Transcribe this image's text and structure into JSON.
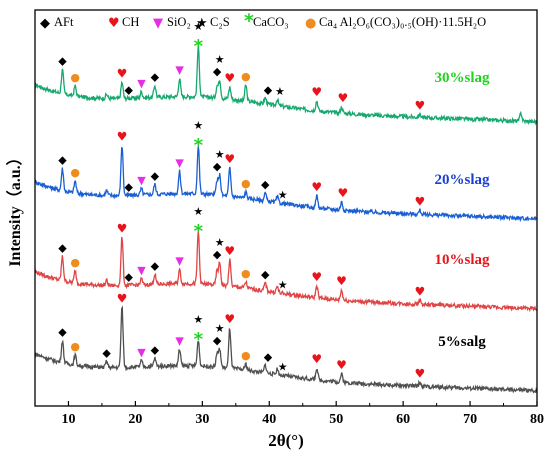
{
  "chart_data": {
    "type": "line",
    "xlabel": "2θ(°)",
    "ylabel": "Intensity（a.u.）",
    "xlim": [
      5,
      80
    ],
    "xticks": [
      "10",
      "20",
      "30",
      "40",
      "50",
      "60",
      "70",
      "80"
    ],
    "grid": false,
    "legend_position": "top",
    "legend": [
      {
        "symbol": "◆",
        "label": "AFt",
        "color": "#000000"
      },
      {
        "symbol": "♥",
        "label": "CH",
        "color": "#e8141b"
      },
      {
        "symbol": "▼",
        "label": "SiO₂",
        "color": "#e62ee6"
      },
      {
        "symbol": "★",
        "label": "C₂S",
        "color": "#000000"
      },
      {
        "symbol": "*",
        "label": "CaCO₃",
        "color": "#1fd31f"
      },
      {
        "symbol": "●",
        "label": "Ca₄ Al₂O₆(CO₃)₀.₅(OH)·11.5H₂O",
        "color": "#f08c1e"
      }
    ],
    "peaks": [
      {
        "x": 9.1,
        "h": 26
      },
      {
        "x": 11.0,
        "h": 10
      },
      {
        "x": 15.7,
        "h": 5
      },
      {
        "x": 18.0,
        "h": 62
      },
      {
        "x": 20.9,
        "h": 6
      },
      {
        "x": 22.9,
        "h": 10
      },
      {
        "x": 26.6,
        "h": 18
      },
      {
        "x": 29.4,
        "h": 38
      },
      {
        "x": 32.2,
        "h": 14
      },
      {
        "x": 32.6,
        "h": 20
      },
      {
        "x": 34.1,
        "h": 40
      },
      {
        "x": 36.5,
        "h": 6
      },
      {
        "x": 39.4,
        "h": 8
      },
      {
        "x": 41.2,
        "h": 6
      },
      {
        "x": 47.1,
        "h": 14
      },
      {
        "x": 50.8,
        "h": 10
      },
      {
        "x": 62.5,
        "h": 6
      }
    ],
    "series": [
      {
        "name": "30%slag",
        "color": "#17a870",
        "label_color": "#1fd31f",
        "peaks": [
          {
            "x": 9.1,
            "h": 24
          },
          {
            "x": 11.0,
            "h": 10
          },
          {
            "x": 15.7,
            "h": 4
          },
          {
            "x": 18.0,
            "h": 16
          },
          {
            "x": 20.9,
            "h": 6
          },
          {
            "x": 22.9,
            "h": 12
          },
          {
            "x": 26.6,
            "h": 18
          },
          {
            "x": 29.4,
            "h": 50
          },
          {
            "x": 32.2,
            "h": 12
          },
          {
            "x": 32.6,
            "h": 18
          },
          {
            "x": 34.1,
            "h": 12
          },
          {
            "x": 36.5,
            "h": 16
          },
          {
            "x": 39.4,
            "h": 6
          },
          {
            "x": 41.2,
            "h": 6
          },
          {
            "x": 47.1,
            "h": 10
          },
          {
            "x": 50.8,
            "h": 6
          },
          {
            "x": 62.5,
            "h": 3
          },
          {
            "x": 77.6,
            "h": 8
          }
        ]
      },
      {
        "name": "20%slag",
        "color": "#1a5fd4",
        "label_color": "#1a3fd4",
        "peaks": [
          {
            "x": 9.1,
            "h": 22
          },
          {
            "x": 11.0,
            "h": 12
          },
          {
            "x": 15.7,
            "h": 5
          },
          {
            "x": 18.0,
            "h": 50
          },
          {
            "x": 20.9,
            "h": 6
          },
          {
            "x": 22.9,
            "h": 10
          },
          {
            "x": 26.6,
            "h": 22
          },
          {
            "x": 29.4,
            "h": 48
          },
          {
            "x": 32.2,
            "h": 14
          },
          {
            "x": 32.6,
            "h": 20
          },
          {
            "x": 34.1,
            "h": 28
          },
          {
            "x": 36.5,
            "h": 6
          },
          {
            "x": 39.4,
            "h": 8
          },
          {
            "x": 41.2,
            "h": 6
          },
          {
            "x": 47.1,
            "h": 12
          },
          {
            "x": 50.8,
            "h": 8
          },
          {
            "x": 62.5,
            "h": 4
          }
        ]
      },
      {
        "name": "10%slag",
        "color": "#e04545",
        "label_color": "#e8141b",
        "peaks": [
          {
            "x": 9.1,
            "h": 24
          },
          {
            "x": 11.0,
            "h": 12
          },
          {
            "x": 15.7,
            "h": 5
          },
          {
            "x": 18.0,
            "h": 48
          },
          {
            "x": 20.9,
            "h": 6
          },
          {
            "x": 22.9,
            "h": 10
          },
          {
            "x": 26.6,
            "h": 14
          },
          {
            "x": 29.4,
            "h": 52
          },
          {
            "x": 32.2,
            "h": 14
          },
          {
            "x": 32.6,
            "h": 22
          },
          {
            "x": 34.1,
            "h": 26
          },
          {
            "x": 36.5,
            "h": 6
          },
          {
            "x": 39.4,
            "h": 8
          },
          {
            "x": 41.2,
            "h": 6
          },
          {
            "x": 47.1,
            "h": 12
          },
          {
            "x": 50.8,
            "h": 10
          },
          {
            "x": 62.5,
            "h": 4
          }
        ]
      },
      {
        "name": "5%salg",
        "color": "#505050",
        "label_color": "#000000",
        "peaks": [
          {
            "x": 9.1,
            "h": 22
          },
          {
            "x": 11.0,
            "h": 10
          },
          {
            "x": 15.7,
            "h": 6
          },
          {
            "x": 18.0,
            "h": 60
          },
          {
            "x": 20.9,
            "h": 6
          },
          {
            "x": 22.9,
            "h": 8
          },
          {
            "x": 26.6,
            "h": 16
          },
          {
            "x": 29.4,
            "h": 26
          },
          {
            "x": 32.2,
            "h": 14
          },
          {
            "x": 32.6,
            "h": 18
          },
          {
            "x": 34.1,
            "h": 40
          },
          {
            "x": 36.5,
            "h": 6
          },
          {
            "x": 39.4,
            "h": 8
          },
          {
            "x": 41.2,
            "h": 6
          },
          {
            "x": 47.1,
            "h": 12
          },
          {
            "x": 50.8,
            "h": 8
          },
          {
            "x": 62.5,
            "h": 4
          }
        ]
      }
    ],
    "markers": [
      {
        "series": 0,
        "x": 9.1,
        "s": "◆",
        "c": "#000000"
      },
      {
        "series": 0,
        "x": 11.0,
        "s": "●",
        "c": "#f08c1e"
      },
      {
        "series": 0,
        "x": 18.0,
        "s": "♥",
        "c": "#e8141b"
      },
      {
        "series": 0,
        "x": 20.9,
        "s": "▼",
        "c": "#e62ee6"
      },
      {
        "series": 0,
        "x": 19.0,
        "s": "◆",
        "c": "#000000"
      },
      {
        "series": 0,
        "x": 22.9,
        "s": "◆",
        "c": "#000000"
      },
      {
        "series": 0,
        "x": 26.6,
        "s": "▼",
        "c": "#e62ee6"
      },
      {
        "series": 0,
        "x": 29.4,
        "s": "★",
        "c": "#000000",
        "dy": -12
      },
      {
        "series": 0,
        "x": 29.4,
        "s": "*",
        "c": "#1fd31f"
      },
      {
        "series": 0,
        "x": 32.2,
        "s": "◆",
        "c": "#000000"
      },
      {
        "series": 0,
        "x": 32.6,
        "s": "★",
        "c": "#000000",
        "dy": -12
      },
      {
        "series": 0,
        "x": 34.1,
        "s": "♥",
        "c": "#e8141b"
      },
      {
        "series": 0,
        "x": 36.5,
        "s": "●",
        "c": "#f08c1e"
      },
      {
        "series": 0,
        "x": 39.8,
        "s": "◆",
        "c": "#000000"
      },
      {
        "series": 0,
        "x": 41.6,
        "s": "★",
        "c": "#000000"
      },
      {
        "series": 0,
        "x": 47.1,
        "s": "♥",
        "c": "#e8141b"
      },
      {
        "series": 0,
        "x": 51.0,
        "s": "♥",
        "c": "#e8141b"
      },
      {
        "series": 0,
        "x": 62.5,
        "s": "♥",
        "c": "#e8141b"
      },
      {
        "series": 1,
        "x": 9.1,
        "s": "◆",
        "c": "#000000"
      },
      {
        "series": 1,
        "x": 11.0,
        "s": "●",
        "c": "#f08c1e"
      },
      {
        "series": 1,
        "x": 18.0,
        "s": "♥",
        "c": "#e8141b"
      },
      {
        "series": 1,
        "x": 19.0,
        "s": "◆",
        "c": "#000000"
      },
      {
        "series": 1,
        "x": 20.9,
        "s": "▼",
        "c": "#e62ee6"
      },
      {
        "series": 1,
        "x": 22.9,
        "s": "◆",
        "c": "#000000"
      },
      {
        "series": 1,
        "x": 26.6,
        "s": "▼",
        "c": "#e62ee6"
      },
      {
        "series": 1,
        "x": 29.4,
        "s": "★",
        "c": "#000000",
        "dy": -12
      },
      {
        "series": 1,
        "x": 29.4,
        "s": "*",
        "c": "#1fd31f"
      },
      {
        "series": 1,
        "x": 32.2,
        "s": "◆",
        "c": "#000000"
      },
      {
        "series": 1,
        "x": 32.6,
        "s": "★",
        "c": "#000000",
        "dy": -12
      },
      {
        "series": 1,
        "x": 34.1,
        "s": "♥",
        "c": "#e8141b"
      },
      {
        "series": 1,
        "x": 36.5,
        "s": "●",
        "c": "#f08c1e"
      },
      {
        "series": 1,
        "x": 39.4,
        "s": "◆",
        "c": "#000000"
      },
      {
        "series": 1,
        "x": 42.0,
        "s": "★",
        "c": "#000000"
      },
      {
        "series": 1,
        "x": 47.1,
        "s": "♥",
        "c": "#e8141b"
      },
      {
        "series": 1,
        "x": 51.0,
        "s": "♥",
        "c": "#e8141b"
      },
      {
        "series": 1,
        "x": 62.5,
        "s": "♥",
        "c": "#e8141b"
      },
      {
        "series": 2,
        "x": 9.1,
        "s": "◆",
        "c": "#000000"
      },
      {
        "series": 2,
        "x": 11.0,
        "s": "●",
        "c": "#f08c1e"
      },
      {
        "series": 2,
        "x": 18.0,
        "s": "♥",
        "c": "#e8141b"
      },
      {
        "series": 2,
        "x": 19.0,
        "s": "◆",
        "c": "#000000"
      },
      {
        "series": 2,
        "x": 20.9,
        "s": "▼",
        "c": "#e62ee6"
      },
      {
        "series": 2,
        "x": 22.9,
        "s": "◆",
        "c": "#000000"
      },
      {
        "series": 2,
        "x": 26.6,
        "s": "▼",
        "c": "#e62ee6"
      },
      {
        "series": 2,
        "x": 29.4,
        "s": "★",
        "c": "#000000",
        "dy": -12
      },
      {
        "series": 2,
        "x": 29.4,
        "s": "*",
        "c": "#1fd31f"
      },
      {
        "series": 2,
        "x": 32.2,
        "s": "◆",
        "c": "#000000"
      },
      {
        "series": 2,
        "x": 32.6,
        "s": "★",
        "c": "#000000",
        "dy": -12
      },
      {
        "series": 2,
        "x": 34.1,
        "s": "♥",
        "c": "#e8141b"
      },
      {
        "series": 2,
        "x": 36.5,
        "s": "●",
        "c": "#f08c1e"
      },
      {
        "series": 2,
        "x": 39.4,
        "s": "◆",
        "c": "#000000"
      },
      {
        "series": 2,
        "x": 42.0,
        "s": "★",
        "c": "#000000"
      },
      {
        "series": 2,
        "x": 47.1,
        "s": "♥",
        "c": "#e8141b"
      },
      {
        "series": 2,
        "x": 50.8,
        "s": "♥",
        "c": "#e8141b"
      },
      {
        "series": 2,
        "x": 62.5,
        "s": "♥",
        "c": "#e8141b"
      },
      {
        "series": 3,
        "x": 9.1,
        "s": "◆",
        "c": "#000000"
      },
      {
        "series": 3,
        "x": 11.0,
        "s": "●",
        "c": "#f08c1e"
      },
      {
        "series": 3,
        "x": 15.7,
        "s": "◆",
        "c": "#000000"
      },
      {
        "series": 3,
        "x": 18.0,
        "s": "♥",
        "c": "#e8141b"
      },
      {
        "series": 3,
        "x": 20.9,
        "s": "▼",
        "c": "#e62ee6"
      },
      {
        "series": 3,
        "x": 22.9,
        "s": "◆",
        "c": "#000000"
      },
      {
        "series": 3,
        "x": 26.6,
        "s": "▼",
        "c": "#e62ee6"
      },
      {
        "series": 3,
        "x": 29.4,
        "s": "★",
        "c": "#000000",
        "dy": -12
      },
      {
        "series": 3,
        "x": 29.4,
        "s": "*",
        "c": "#1fd31f"
      },
      {
        "series": 3,
        "x": 32.2,
        "s": "◆",
        "c": "#000000"
      },
      {
        "series": 3,
        "x": 32.6,
        "s": "★",
        "c": "#000000",
        "dy": -12
      },
      {
        "series": 3,
        "x": 34.1,
        "s": "♥",
        "c": "#e8141b"
      },
      {
        "series": 3,
        "x": 36.5,
        "s": "●",
        "c": "#f08c1e"
      },
      {
        "series": 3,
        "x": 39.8,
        "s": "◆",
        "c": "#000000"
      },
      {
        "series": 3,
        "x": 42.0,
        "s": "★",
        "c": "#000000"
      },
      {
        "series": 3,
        "x": 47.1,
        "s": "♥",
        "c": "#e8141b"
      },
      {
        "series": 3,
        "x": 50.8,
        "s": "♥",
        "c": "#e8141b"
      },
      {
        "series": 3,
        "x": 62.5,
        "s": "♥",
        "c": "#e8141b"
      }
    ]
  }
}
